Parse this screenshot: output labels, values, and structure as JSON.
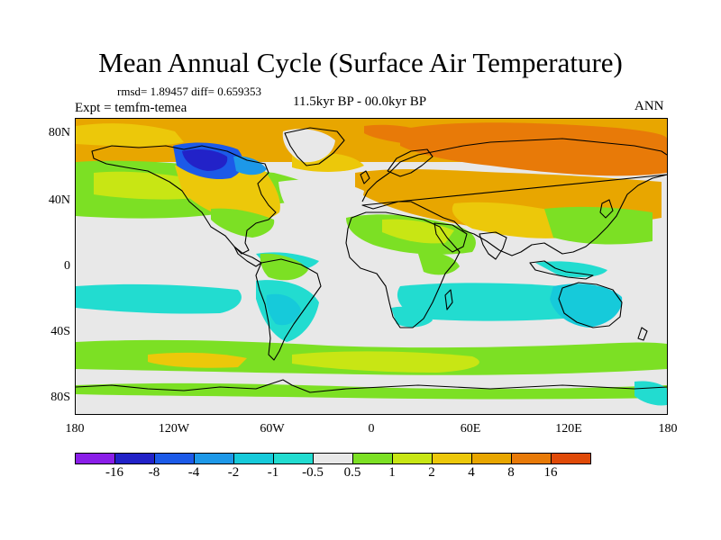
{
  "title": "Mean Annual Cycle (Surface Air Temperature)",
  "stats": "rmsd= 1.89457 diff= 0.659353",
  "experiment": "Expt = temfm-temea",
  "period": "11.5kyr BP - 00.0kyr BP",
  "season": "ANN",
  "map": {
    "lat_labels": [
      "80N",
      "40N",
      "0",
      "40S",
      "80S"
    ],
    "lon_labels": [
      "180",
      "120W",
      "60W",
      "0",
      "60E",
      "120E",
      "180"
    ]
  },
  "colorbar": {
    "colors": [
      "#8a1ee8",
      "#2222c8",
      "#1c5ae8",
      "#1d98e8",
      "#16cada",
      "#22dcd0",
      "#e8e8e8",
      "#7ce024",
      "#c8e614",
      "#ecc80a",
      "#e8a600",
      "#e87a08",
      "#e04a08"
    ],
    "labels": [
      "-16",
      "-8",
      "-4",
      "-2",
      "-1",
      "-0.5",
      "0.5",
      "1",
      "2",
      "4",
      "8",
      "16"
    ]
  },
  "palette": {
    "neutral": "#e8e8e8",
    "warm_1": "#7ce024",
    "warm_2": "#c8e614",
    "warm_3": "#ecc80a",
    "warm_4": "#e8a600",
    "warm_5": "#e87a08",
    "warm_6": "#e04a08",
    "cool_1": "#22dcd0",
    "cool_2": "#16cada",
    "cool_3": "#1d98e8",
    "cool_4": "#1c5ae8",
    "cool_5": "#2222c8"
  }
}
